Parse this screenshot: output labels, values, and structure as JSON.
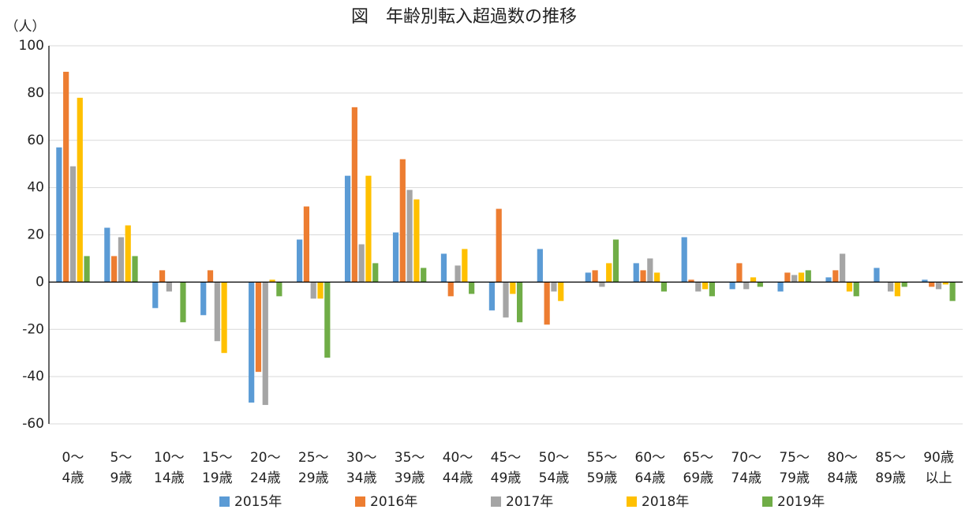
{
  "chart_data": {
    "type": "bar",
    "title": "図　年齢別転入超過数の推移",
    "y_unit": "（人）",
    "categories": [
      [
        "0～",
        "4歳"
      ],
      [
        "5～",
        "9歳"
      ],
      [
        "10～",
        "14歳"
      ],
      [
        "15～",
        "19歳"
      ],
      [
        "20～",
        "24歳"
      ],
      [
        "25～",
        "29歳"
      ],
      [
        "30～",
        "34歳"
      ],
      [
        "35～",
        "39歳"
      ],
      [
        "40～",
        "44歳"
      ],
      [
        "45～",
        "49歳"
      ],
      [
        "50～",
        "54歳"
      ],
      [
        "55～",
        "59歳"
      ],
      [
        "60～",
        "64歳"
      ],
      [
        "65～",
        "69歳"
      ],
      [
        "70～",
        "74歳"
      ],
      [
        "75～",
        "79歳"
      ],
      [
        "80～",
        "84歳"
      ],
      [
        "85～",
        "89歳"
      ],
      [
        "90歳",
        "以上"
      ]
    ],
    "series": [
      {
        "name": "2015年",
        "color": "#5b9bd5",
        "values": [
          57,
          23,
          -11,
          -14,
          -51,
          18,
          45,
          21,
          12,
          -12,
          14,
          4,
          8,
          19,
          -3,
          -4,
          2,
          6,
          1
        ]
      },
      {
        "name": "2016年",
        "color": "#ed7d31",
        "values": [
          89,
          11,
          5,
          5,
          -38,
          32,
          74,
          52,
          -6,
          31,
          -18,
          5,
          5,
          1,
          8,
          4,
          5,
          0,
          -2
        ]
      },
      {
        "name": "2017年",
        "color": "#a5a5a5",
        "values": [
          49,
          19,
          -4,
          -25,
          -52,
          -7,
          16,
          39,
          7,
          -15,
          -4,
          -2,
          10,
          -4,
          -3,
          3,
          12,
          -4,
          -3
        ]
      },
      {
        "name": "2018年",
        "color": "#ffc000",
        "values": [
          78,
          24,
          0,
          -30,
          1,
          -7,
          45,
          35,
          14,
          -5,
          -8,
          8,
          4,
          -3,
          2,
          4,
          -4,
          -6,
          -1
        ]
      },
      {
        "name": "2019年",
        "color": "#70ad47",
        "values": [
          11,
          11,
          -17,
          0,
          -6,
          -32,
          8,
          6,
          -5,
          -17,
          0,
          18,
          -4,
          -6,
          -2,
          5,
          -6,
          -2,
          -8
        ]
      }
    ],
    "ylim": [
      -60,
      100
    ],
    "yticks": [
      -60,
      -40,
      -20,
      0,
      20,
      40,
      60,
      80,
      100
    ],
    "grid": true,
    "legend": "bottom"
  }
}
